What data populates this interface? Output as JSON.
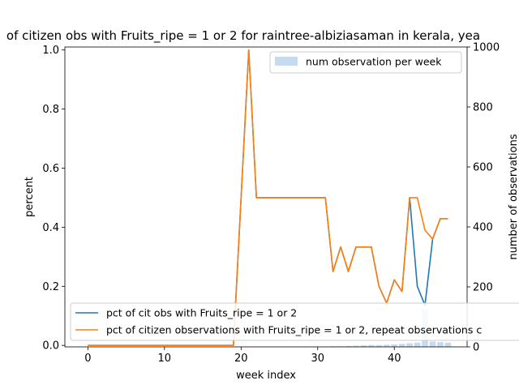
{
  "chart_data": {
    "type": "line",
    "title": "of citizen obs with Fruits_ripe = 1 or 2 for raintree-albiziasaman in kerala, yea",
    "xlabel": "week index",
    "ylabel": "percent",
    "y2label": "number of observations",
    "xlim": [
      -3,
      49.5
    ],
    "ylim": [
      -0.005,
      1.01
    ],
    "y2lim": [
      0,
      1000
    ],
    "xticks": [
      0,
      10,
      20,
      30,
      40
    ],
    "yticks": [
      0.0,
      0.2,
      0.4,
      0.6,
      0.8,
      1.0
    ],
    "yticklabels": [
      "0.0",
      "0.2",
      "0.4",
      "0.6",
      "0.8",
      "1.0"
    ],
    "y2ticks": [
      0,
      200,
      400,
      600,
      800,
      1000
    ],
    "x": [
      0,
      1,
      2,
      3,
      4,
      5,
      6,
      7,
      8,
      9,
      10,
      11,
      12,
      13,
      14,
      15,
      16,
      17,
      18,
      19,
      20,
      21,
      22,
      23,
      24,
      25,
      26,
      27,
      28,
      29,
      30,
      31,
      32,
      33,
      34,
      35,
      36,
      37,
      38,
      39,
      40,
      41,
      42,
      43,
      44,
      45,
      46,
      47
    ],
    "series": [
      {
        "name": "pct of cit obs with Fruits_ripe = 1 or 2",
        "color": "#1f77b4",
        "values": [
          0,
          0,
          0,
          0,
          0,
          0,
          0,
          0,
          0,
          0,
          0,
          0,
          0,
          0,
          0,
          0,
          0,
          0,
          0,
          0,
          0.5,
          1.0,
          0.5,
          0.5,
          0.5,
          0.5,
          0.5,
          0.5,
          0.5,
          0.5,
          0.5,
          0.5,
          0.25,
          0.333,
          0.25,
          0.333,
          0.333,
          0.333,
          0.2,
          0.143,
          0.222,
          0.182,
          0.5,
          0.2,
          0.136,
          0.36,
          0.429,
          0.429
        ]
      },
      {
        "name": "pct of citizen observations with Fruits_ripe = 1 or 2, repeat observations c",
        "color": "#ff7f0e",
        "values": [
          0,
          0,
          0,
          0,
          0,
          0,
          0,
          0,
          0,
          0,
          0,
          0,
          0,
          0,
          0,
          0,
          0,
          0,
          0,
          0,
          0.5,
          1.0,
          0.5,
          0.5,
          0.5,
          0.5,
          0.5,
          0.5,
          0.5,
          0.5,
          0.5,
          0.5,
          0.25,
          0.333,
          0.25,
          0.333,
          0.333,
          0.333,
          0.2,
          0.143,
          0.222,
          0.182,
          0.5,
          0.5,
          0.39,
          0.36,
          0.429,
          0.429
        ]
      }
    ],
    "bars": {
      "name": "num observation per week",
      "color": "#c6dbef",
      "values": [
        0,
        0,
        0,
        0,
        0,
        0,
        0,
        0,
        0,
        0,
        0,
        0,
        0,
        0,
        0,
        0,
        0,
        0,
        0,
        0,
        1,
        1,
        1,
        1,
        1,
        1,
        1,
        1,
        1,
        1,
        1,
        1,
        2,
        2,
        3,
        4,
        5,
        6,
        6,
        7,
        8,
        10,
        12,
        14,
        125,
        18,
        16,
        14
      ]
    },
    "legend_bars_placement": "upper-right",
    "legend_lines_placement": "lower-left"
  }
}
